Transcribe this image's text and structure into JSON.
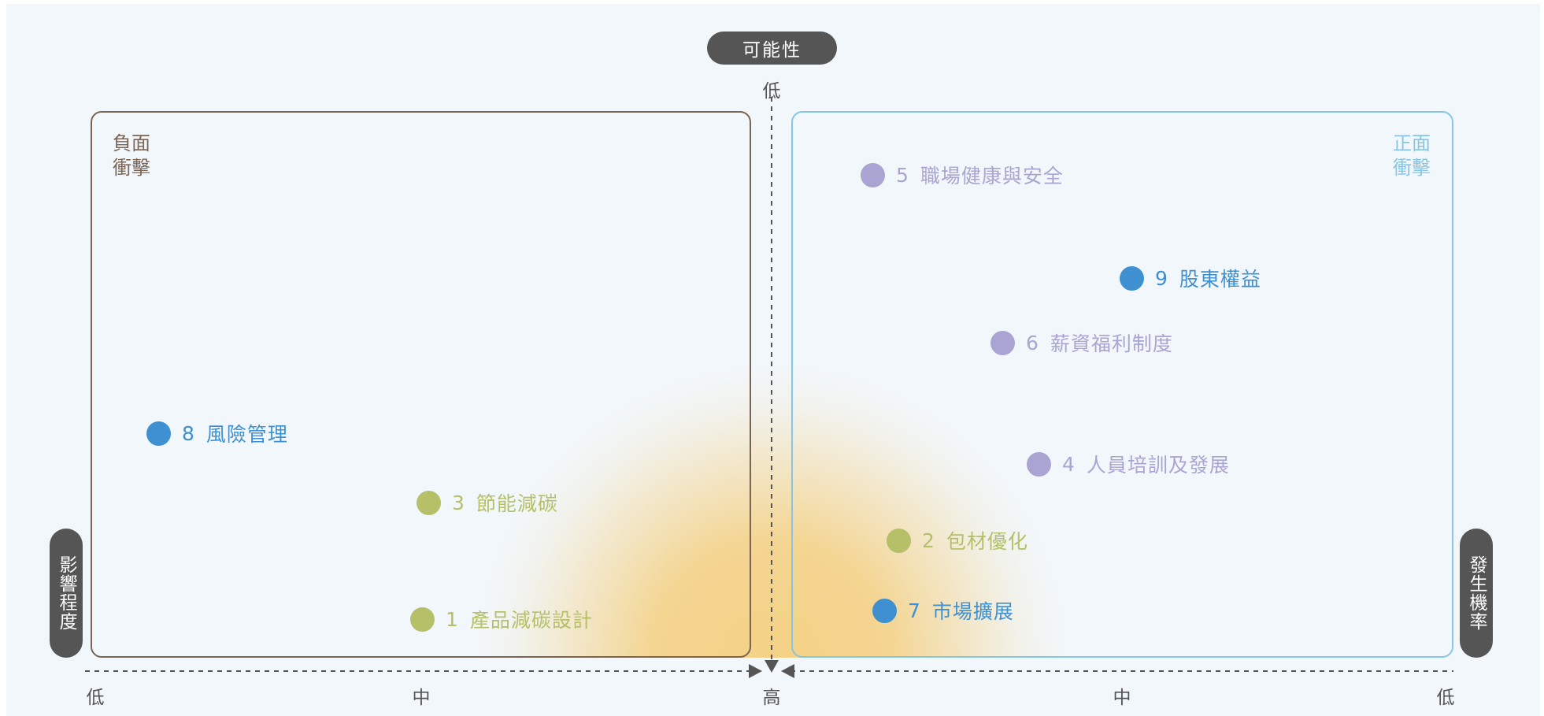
{
  "title": "可能性",
  "y_axis_title": "影響程度",
  "x_axis_title": "發生機率",
  "top_tick": "低",
  "bottom_ticks": {
    "low_left": "低",
    "mid_left": "中",
    "high": "高",
    "mid_right": "中",
    "low_right": "低"
  },
  "panels": {
    "negative": {
      "label_line1": "負面",
      "label_line2": "衝擊",
      "color": "#7a6555"
    },
    "positive": {
      "label_line1": "正面",
      "label_line2": "衝擊",
      "color": "#86c5e3"
    }
  },
  "colors": {
    "blue": "#3f90d1",
    "green": "#b5c069",
    "purple": "#a9a4d1",
    "pill": "#555555",
    "highlight": "#f4cf7f"
  },
  "items": [
    {
      "num": "1",
      "name": "產品減碳設計",
      "color": "#b5c069",
      "text_color": "#b5c069"
    },
    {
      "num": "2",
      "name": "包材優化",
      "color": "#b5c069",
      "text_color": "#b5c069"
    },
    {
      "num": "3",
      "name": "節能減碳",
      "color": "#b5c069",
      "text_color": "#b5c069"
    },
    {
      "num": "4",
      "name": "人員培訓及發展",
      "color": "#a9a4d1",
      "text_color": "#a9a4d1"
    },
    {
      "num": "5",
      "name": "職場健康與安全",
      "color": "#a9a4d1",
      "text_color": "#a9a4d1"
    },
    {
      "num": "6",
      "name": "薪資福利制度",
      "color": "#a9a4d1",
      "text_color": "#a9a4d1"
    },
    {
      "num": "7",
      "name": "市場擴展",
      "color": "#3f90d1",
      "text_color": "#3f90d1"
    },
    {
      "num": "8",
      "name": "風險管理",
      "color": "#3f90d1",
      "text_color": "#3f90d1"
    },
    {
      "num": "9",
      "name": "股東權益",
      "color": "#3f90d1",
      "text_color": "#3f90d1"
    }
  ]
}
